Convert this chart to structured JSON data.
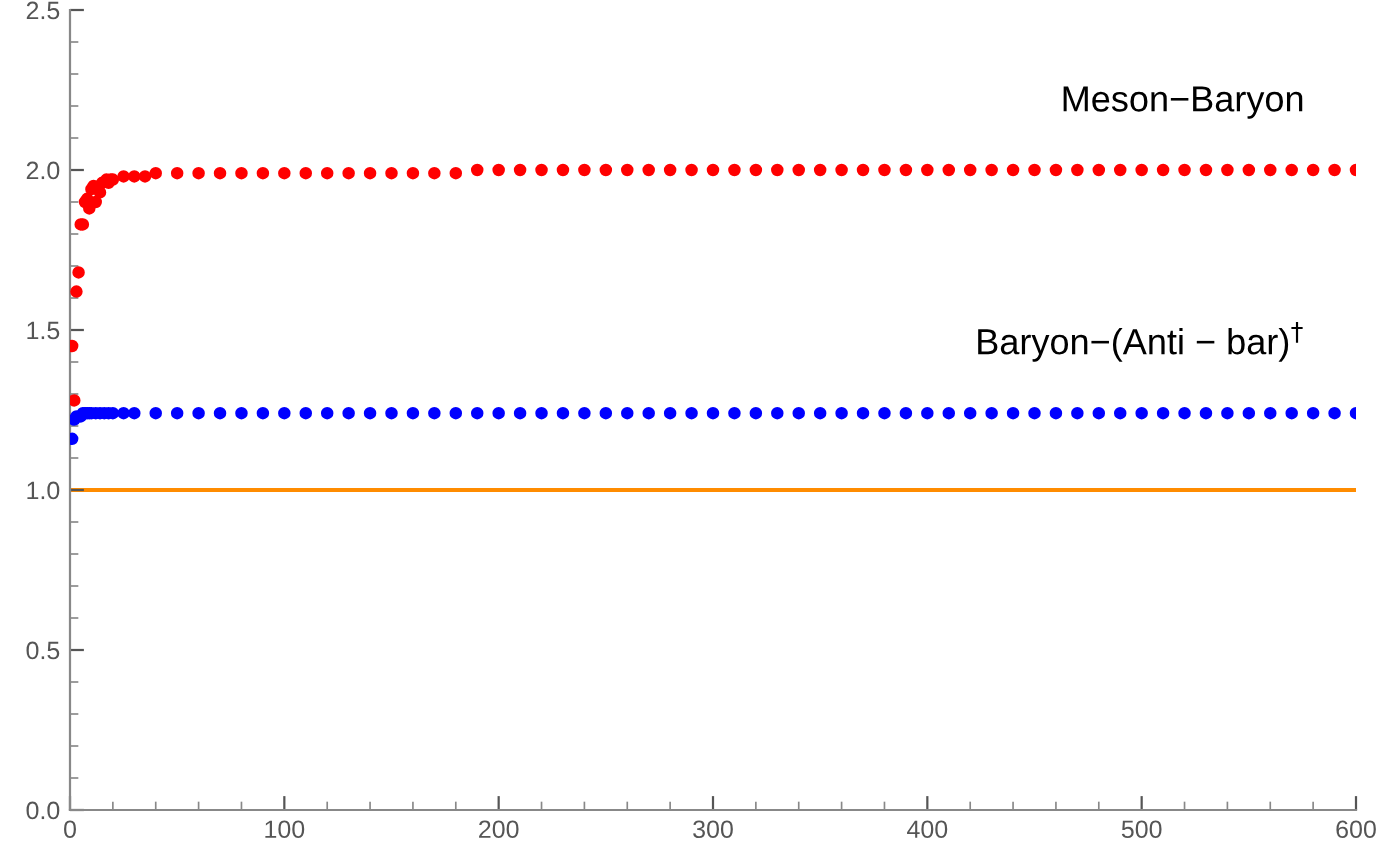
{
  "chart_data": {
    "type": "scatter",
    "xlim": [
      0,
      600
    ],
    "ylim": [
      0,
      2.5
    ],
    "xticks": [
      0,
      100,
      200,
      300,
      400,
      500,
      600
    ],
    "yticks": [
      {
        "value": 0,
        "label": "0.0"
      },
      {
        "value": 0.5,
        "label": "0.5"
      },
      {
        "value": 1,
        "label": "1.0"
      },
      {
        "value": 1.5,
        "label": "1.5"
      },
      {
        "value": 2,
        "label": "2.0"
      },
      {
        "value": 2.5,
        "label": "2.5"
      }
    ],
    "grid": false,
    "legend": false,
    "marker": "circle",
    "series": [
      {
        "name": "Meson−Baryon",
        "color": "#ff0000",
        "x": [
          1,
          2,
          3,
          4,
          5,
          6,
          7,
          8,
          9,
          10,
          11,
          12,
          14,
          15,
          17,
          18,
          19,
          20,
          25,
          30,
          35,
          40,
          50,
          60,
          70,
          80,
          90,
          100,
          110,
          120,
          130,
          140,
          150,
          160,
          170,
          180,
          190,
          200,
          210,
          220,
          230,
          240,
          250,
          260,
          270,
          280,
          290,
          300,
          310,
          320,
          330,
          340,
          350,
          360,
          370,
          380,
          390,
          400,
          410,
          420,
          430,
          440,
          450,
          460,
          470,
          480,
          490,
          500,
          510,
          520,
          530,
          540,
          550,
          560,
          570,
          580,
          590,
          600
        ],
        "values": [
          1.45,
          1.28,
          1.62,
          1.68,
          1.83,
          1.83,
          1.9,
          1.91,
          1.88,
          1.94,
          1.95,
          1.9,
          1.93,
          1.96,
          1.97,
          1.96,
          1.97,
          1.97,
          1.98,
          1.98,
          1.98,
          1.99,
          1.99,
          1.99,
          1.99,
          1.99,
          1.99,
          1.99,
          1.99,
          1.99,
          1.99,
          1.99,
          1.99,
          1.99,
          1.99,
          1.99,
          2.0,
          2.0,
          2.0,
          2.0,
          2.0,
          2.0,
          2.0,
          2.0,
          2.0,
          2.0,
          2.0,
          2.0,
          2.0,
          2.0,
          2.0,
          2.0,
          2.0,
          2.0,
          2.0,
          2.0,
          2.0,
          2.0,
          2.0,
          2.0,
          2.0,
          2.0,
          2.0,
          2.0,
          2.0,
          2.0,
          2.0,
          2.0,
          2.0,
          2.0,
          2.0,
          2.0,
          2.0,
          2.0,
          2.0,
          2.0,
          2.0,
          2.0
        ]
      },
      {
        "name": "Baryon−(Anti − bar)$^{†}$",
        "color": "#0000ff",
        "x": [
          1,
          2,
          3,
          5,
          6,
          7,
          8,
          9,
          10,
          12,
          14,
          16,
          18,
          20,
          25,
          30,
          40,
          50,
          60,
          70,
          80,
          90,
          100,
          110,
          120,
          130,
          140,
          150,
          160,
          170,
          180,
          190,
          200,
          210,
          220,
          230,
          240,
          250,
          260,
          270,
          280,
          290,
          300,
          310,
          320,
          330,
          340,
          350,
          360,
          370,
          380,
          390,
          400,
          410,
          420,
          430,
          440,
          450,
          460,
          470,
          480,
          490,
          500,
          510,
          520,
          530,
          540,
          550,
          560,
          570,
          580,
          590,
          600
        ],
        "values": [
          1.16,
          1.22,
          1.23,
          1.23,
          1.24,
          1.24,
          1.24,
          1.24,
          1.24,
          1.24,
          1.24,
          1.24,
          1.24,
          1.24,
          1.24,
          1.24,
          1.24,
          1.24,
          1.24,
          1.24,
          1.24,
          1.24,
          1.24,
          1.24,
          1.24,
          1.24,
          1.24,
          1.24,
          1.24,
          1.24,
          1.24,
          1.24,
          1.24,
          1.24,
          1.24,
          1.24,
          1.24,
          1.24,
          1.24,
          1.24,
          1.24,
          1.24,
          1.24,
          1.24,
          1.24,
          1.24,
          1.24,
          1.24,
          1.24,
          1.24,
          1.24,
          1.24,
          1.24,
          1.24,
          1.24,
          1.24,
          1.24,
          1.24,
          1.24,
          1.24,
          1.24,
          1.24,
          1.24,
          1.24,
          1.24,
          1.24,
          1.24,
          1.24,
          1.24,
          1.24,
          1.24,
          1.24,
          1.24
        ]
      }
    ],
    "ref_lines": [
      {
        "axis": "y",
        "value": 1,
        "color": "#ff8c00",
        "line_style": "solid"
      }
    ]
  }
}
